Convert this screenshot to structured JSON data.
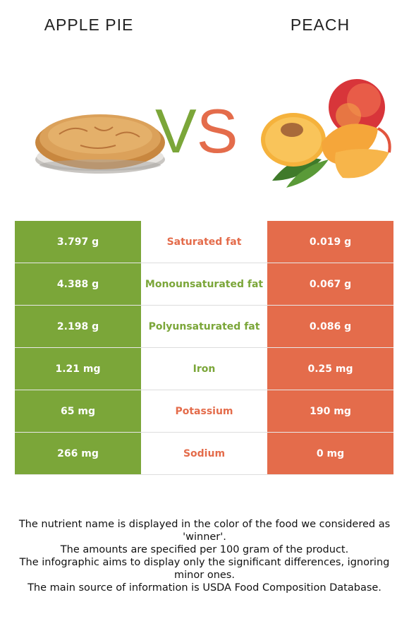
{
  "header": {
    "left_food": "APPLE PIE",
    "right_food": "PEACH",
    "vs_v": "V",
    "vs_s": "S"
  },
  "colors": {
    "left_winner": "#7ba639",
    "right_winner": "#e46c4b"
  },
  "images": {
    "left_icon": "apple-pie-image",
    "right_icon": "peach-image"
  },
  "rows": [
    {
      "left": "3.797 g",
      "nutrient": "Saturated fat",
      "right": "0.019 g",
      "winner": "right"
    },
    {
      "left": "4.388 g",
      "nutrient": "Monounsaturated fat",
      "right": "0.067 g",
      "winner": "left"
    },
    {
      "left": "2.198 g",
      "nutrient": "Polyunsaturated fat",
      "right": "0.086 g",
      "winner": "left"
    },
    {
      "left": "1.21 mg",
      "nutrient": "Iron",
      "right": "0.25 mg",
      "winner": "left"
    },
    {
      "left": "65 mg",
      "nutrient": "Potassium",
      "right": "190 mg",
      "winner": "right"
    },
    {
      "left": "266 mg",
      "nutrient": "Sodium",
      "right": "0 mg",
      "winner": "right"
    }
  ],
  "notes": [
    "The nutrient name is displayed in the color of the food we considered as 'winner'.",
    "The amounts are specified per 100 gram of the product.",
    "The infographic aims to display only the significant differences, ignoring minor ones.",
    "The main source of information is USDA Food Composition Database."
  ]
}
